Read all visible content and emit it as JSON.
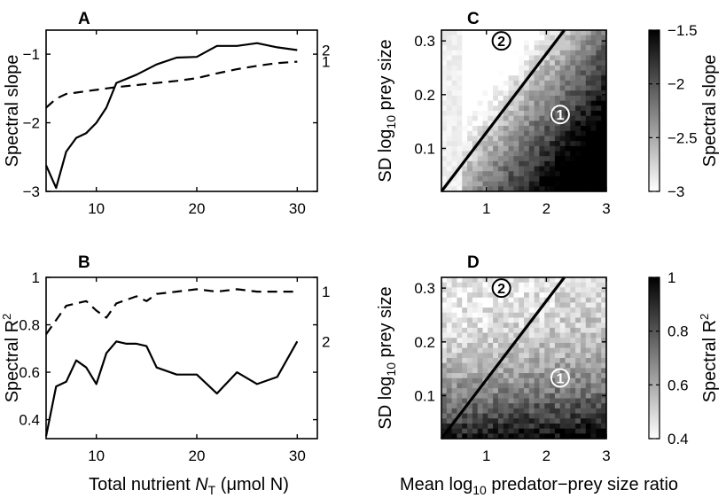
{
  "chart_data": [
    {
      "panel": "A",
      "type": "line",
      "ylabel": "Spectral slope",
      "xlim": [
        5,
        32
      ],
      "ylim": [
        -3,
        -0.65
      ],
      "xticks": [
        10,
        20,
        30
      ],
      "xtick_labels": [
        "10",
        "20",
        "30"
      ],
      "yticks": [
        -3,
        -2,
        -1
      ],
      "ytick_labels": [
        "−3",
        "−2",
        "−1"
      ],
      "series": [
        {
          "name": "1",
          "style": "dashed",
          "x": [
            5,
            6,
            7,
            8,
            9,
            10,
            11,
            12,
            14,
            16,
            18,
            20,
            22,
            24,
            26,
            28,
            30
          ],
          "y": [
            -1.78,
            -1.65,
            -1.58,
            -1.56,
            -1.54,
            -1.52,
            -1.5,
            -1.48,
            -1.45,
            -1.42,
            -1.39,
            -1.35,
            -1.28,
            -1.22,
            -1.17,
            -1.13,
            -1.11
          ]
        },
        {
          "name": "2",
          "style": "solid",
          "x": [
            5,
            6,
            7,
            8,
            9,
            10,
            11,
            12,
            14,
            16,
            18,
            20,
            22,
            24,
            26,
            28,
            30
          ],
          "y": [
            -2.62,
            -2.95,
            -2.42,
            -2.22,
            -2.15,
            -2.0,
            -1.78,
            -1.42,
            -1.3,
            -1.15,
            -1.05,
            -1.04,
            -0.88,
            -0.88,
            -0.84,
            -0.9,
            -0.94
          ]
        }
      ]
    },
    {
      "panel": "B",
      "type": "line",
      "ylabel": "Spectral R",
      "ylabel_sup": "2",
      "xlabel": "Total nutrient",
      "xlabel_var": "N",
      "xlabel_sub": "T",
      "xlabel_unit": "(μmol N)",
      "xlim": [
        5,
        32
      ],
      "ylim": [
        0.32,
        1.0
      ],
      "xticks": [
        10,
        20,
        30
      ],
      "xtick_labels": [
        "10",
        "20",
        "30"
      ],
      "yticks": [
        0.4,
        0.6,
        0.8,
        1.0
      ],
      "ytick_labels": [
        "0.4",
        "0.6",
        "0.8",
        "1"
      ],
      "series": [
        {
          "name": "1",
          "style": "dashed",
          "x": [
            5,
            6,
            7,
            8,
            9,
            10,
            11,
            12,
            14,
            15,
            16,
            18,
            20,
            22,
            24,
            26,
            28,
            30
          ],
          "y": [
            0.76,
            0.82,
            0.88,
            0.89,
            0.9,
            0.86,
            0.83,
            0.89,
            0.92,
            0.9,
            0.93,
            0.94,
            0.95,
            0.94,
            0.95,
            0.94,
            0.94,
            0.94
          ]
        },
        {
          "name": "2",
          "style": "solid",
          "x": [
            5,
            6,
            7,
            8,
            9,
            10,
            11,
            12,
            13,
            14,
            15,
            16,
            18,
            20,
            22,
            24,
            26,
            28,
            30
          ],
          "y": [
            0.33,
            0.54,
            0.56,
            0.65,
            0.62,
            0.55,
            0.68,
            0.73,
            0.72,
            0.72,
            0.71,
            0.62,
            0.59,
            0.59,
            0.51,
            0.6,
            0.55,
            0.58,
            0.73
          ]
        }
      ]
    },
    {
      "panel": "C",
      "type": "heatmap",
      "ylabel": "SD log",
      "ylabel_sub": "10",
      "ylabel_rest": "prey size",
      "xlim": [
        0.25,
        3
      ],
      "ylim": [
        0.02,
        0.32
      ],
      "xticks": [
        1,
        2,
        3
      ],
      "xtick_labels": [
        "1",
        "2",
        "3"
      ],
      "yticks": [
        0.1,
        0.2,
        0.3
      ],
      "ytick_labels": [
        "0.1",
        "0.2",
        "0.3"
      ],
      "grid_cols": 32,
      "grid_rows": 32,
      "gradient": "mean_ratio",
      "seed": 7,
      "value_range": [
        -3,
        -1.5
      ],
      "boundary_line": {
        "x": [
          0.25,
          2.3
        ],
        "y": [
          0.02,
          0.32
        ]
      },
      "region_labels": [
        {
          "text": "2",
          "x": 1.25,
          "y": 0.3,
          "style": "light"
        },
        {
          "text": "1",
          "x": 2.23,
          "y": 0.163,
          "style": "dark"
        }
      ],
      "colorbar": {
        "label": "Spectral slope",
        "ticks": [
          -3,
          -2.5,
          -2,
          -1.5
        ],
        "tick_labels": [
          "−3",
          "−2.5",
          "−2",
          "−1.5"
        ]
      }
    },
    {
      "panel": "D",
      "type": "heatmap",
      "ylabel": "SD log",
      "ylabel_sub": "10",
      "ylabel_rest": "prey size",
      "xlabel": "Mean log",
      "xlabel_sub": "10",
      "xlabel_rest": "predator−prey size ratio",
      "xlim": [
        0.25,
        3
      ],
      "ylim": [
        0.02,
        0.32
      ],
      "xticks": [
        1,
        2,
        3
      ],
      "xtick_labels": [
        "1",
        "2",
        "3"
      ],
      "yticks": [
        0.1,
        0.2,
        0.3
      ],
      "ytick_labels": [
        "0.1",
        "0.2",
        "0.3"
      ],
      "grid_cols": 32,
      "grid_rows": 32,
      "gradient": "low_sd",
      "seed": 19,
      "value_range": [
        0.4,
        1.0
      ],
      "boundary_line": {
        "x": [
          0.25,
          2.3
        ],
        "y": [
          0.02,
          0.32
        ]
      },
      "region_labels": [
        {
          "text": "2",
          "x": 1.25,
          "y": 0.3,
          "style": "light"
        },
        {
          "text": "1",
          "x": 2.23,
          "y": 0.133,
          "style": "dark"
        }
      ],
      "colorbar": {
        "label": "Spectral R",
        "label_sup": "2",
        "ticks": [
          0.4,
          0.6,
          0.8,
          1.0
        ],
        "tick_labels": [
          "0.4",
          "0.6",
          "0.8",
          "1"
        ]
      }
    }
  ]
}
